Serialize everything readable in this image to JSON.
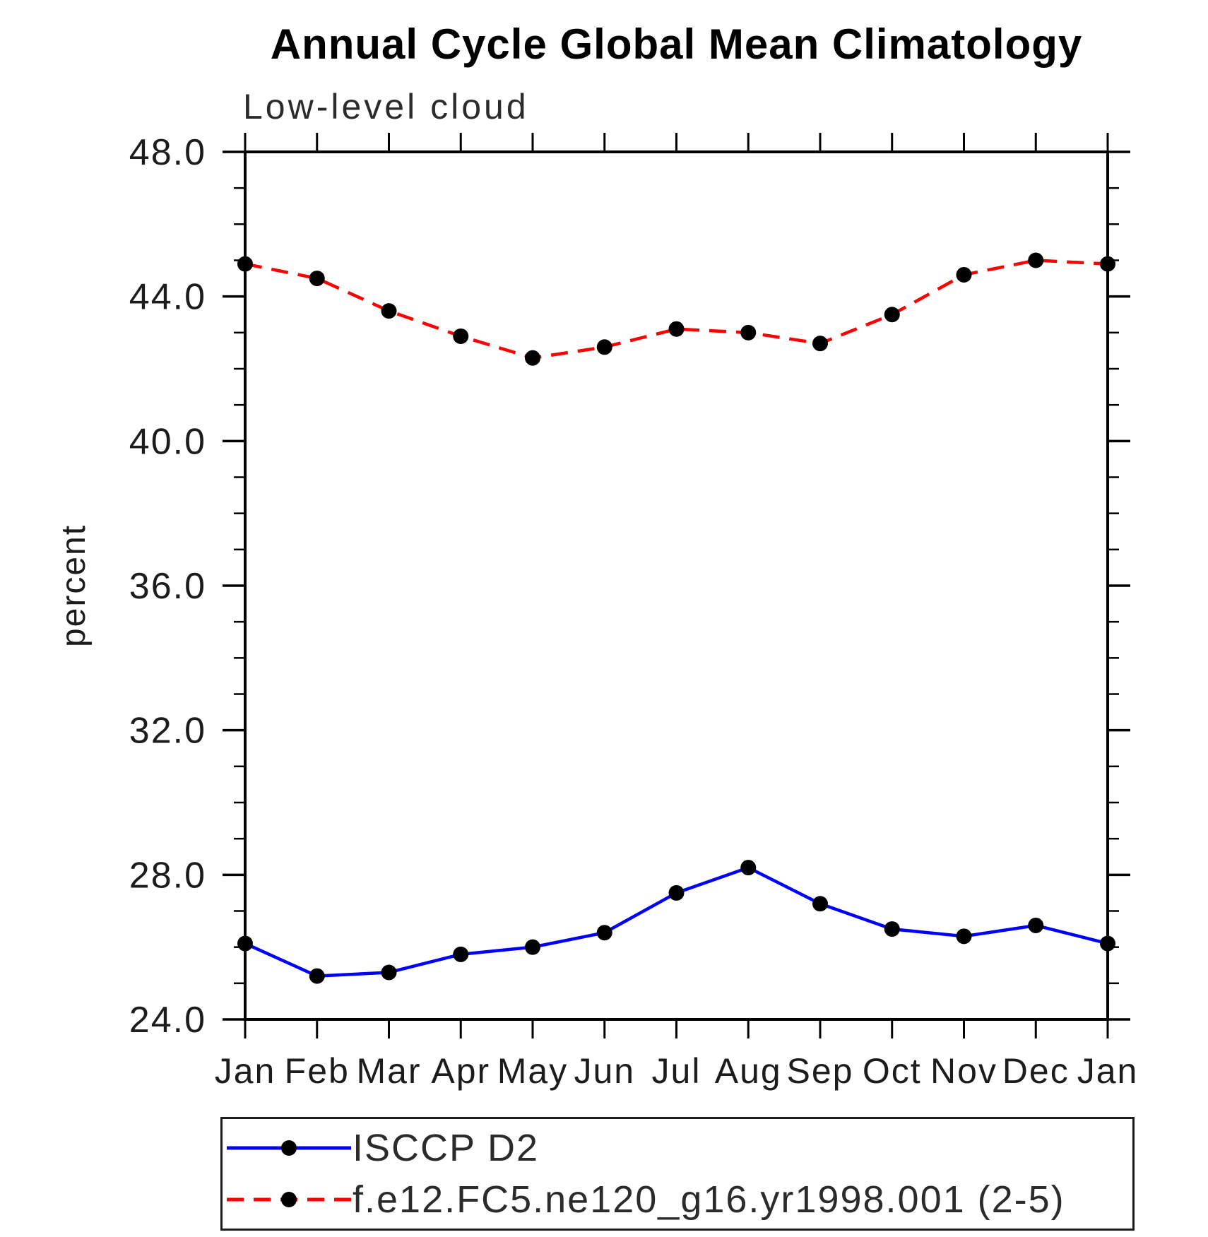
{
  "chart_data": {
    "type": "line",
    "title": "Annual Cycle Global Mean Climatology",
    "subtitle": "Low-level cloud",
    "ylabel": "percent",
    "ylim": [
      24.0,
      48.0
    ],
    "ytick_major": [
      24,
      28,
      32,
      36,
      40,
      44,
      48
    ],
    "ytick_major_labels": [
      "24.0",
      "28.0",
      "32.0",
      "36.0",
      "40.0",
      "44.0",
      "48.0"
    ],
    "ytick_minor_step": 1.0,
    "categories": [
      "Jan",
      "Feb",
      "Mar",
      "Apr",
      "May",
      "Jun",
      "Jul",
      "Aug",
      "Sep",
      "Oct",
      "Nov",
      "Dec",
      "Jan"
    ],
    "series": [
      {
        "name": "ISCCP D2",
        "color": "#0000ff",
        "line_style": "solid",
        "marker": "circle",
        "marker_color": "#000000",
        "values": [
          26.1,
          25.2,
          25.3,
          25.8,
          26.0,
          26.4,
          27.5,
          28.2,
          27.2,
          26.5,
          26.3,
          26.6,
          26.1
        ]
      },
      {
        "name": "f.e12.FC5.ne120_g16.yr1998.001 (2-5)",
        "color": "#ff0000",
        "line_style": "dashed",
        "marker": "circle",
        "marker_color": "#000000",
        "values": [
          44.9,
          44.5,
          43.6,
          42.9,
          42.3,
          42.6,
          43.1,
          43.0,
          42.7,
          43.5,
          44.6,
          45.0,
          44.9
        ]
      }
    ],
    "legend_position": "bottom-left",
    "grid": false,
    "axis_color": "#000000",
    "text_color": "#1c1c1c"
  }
}
